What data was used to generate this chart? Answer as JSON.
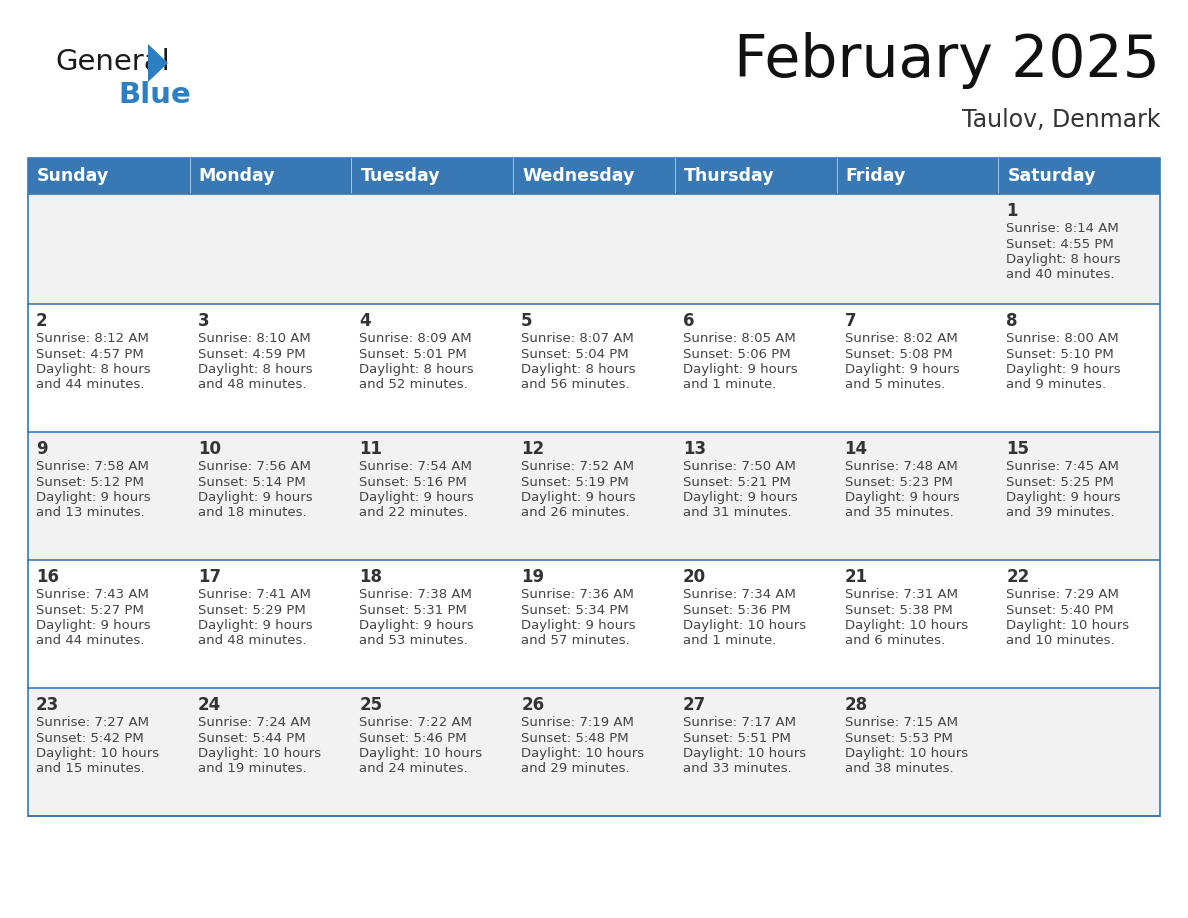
{
  "title": "February 2025",
  "subtitle": "Taulov, Denmark",
  "header_bg_color": "#3878b4",
  "header_text_color": "#ffffff",
  "row_bg_colors": [
    "#f2f2f2",
    "#ffffff",
    "#f2f2f2",
    "#ffffff",
    "#f2f2f2"
  ],
  "border_color": "#3878b4",
  "separator_color": "#3878b4",
  "text_color": "#444444",
  "day_num_color": "#333333",
  "title_color": "#111111",
  "subtitle_color": "#333333",
  "day_names": [
    "Sunday",
    "Monday",
    "Tuesday",
    "Wednesday",
    "Thursday",
    "Friday",
    "Saturday"
  ],
  "calendar_data": [
    [
      null,
      null,
      null,
      null,
      null,
      null,
      {
        "day": 1,
        "sunrise": "8:14 AM",
        "sunset": "4:55 PM",
        "daylight": "8 hours and 40 minutes."
      }
    ],
    [
      {
        "day": 2,
        "sunrise": "8:12 AM",
        "sunset": "4:57 PM",
        "daylight": "8 hours and 44 minutes."
      },
      {
        "day": 3,
        "sunrise": "8:10 AM",
        "sunset": "4:59 PM",
        "daylight": "8 hours and 48 minutes."
      },
      {
        "day": 4,
        "sunrise": "8:09 AM",
        "sunset": "5:01 PM",
        "daylight": "8 hours and 52 minutes."
      },
      {
        "day": 5,
        "sunrise": "8:07 AM",
        "sunset": "5:04 PM",
        "daylight": "8 hours and 56 minutes."
      },
      {
        "day": 6,
        "sunrise": "8:05 AM",
        "sunset": "5:06 PM",
        "daylight": "9 hours and 1 minute."
      },
      {
        "day": 7,
        "sunrise": "8:02 AM",
        "sunset": "5:08 PM",
        "daylight": "9 hours and 5 minutes."
      },
      {
        "day": 8,
        "sunrise": "8:00 AM",
        "sunset": "5:10 PM",
        "daylight": "9 hours and 9 minutes."
      }
    ],
    [
      {
        "day": 9,
        "sunrise": "7:58 AM",
        "sunset": "5:12 PM",
        "daylight": "9 hours and 13 minutes."
      },
      {
        "day": 10,
        "sunrise": "7:56 AM",
        "sunset": "5:14 PM",
        "daylight": "9 hours and 18 minutes."
      },
      {
        "day": 11,
        "sunrise": "7:54 AM",
        "sunset": "5:16 PM",
        "daylight": "9 hours and 22 minutes."
      },
      {
        "day": 12,
        "sunrise": "7:52 AM",
        "sunset": "5:19 PM",
        "daylight": "9 hours and 26 minutes."
      },
      {
        "day": 13,
        "sunrise": "7:50 AM",
        "sunset": "5:21 PM",
        "daylight": "9 hours and 31 minutes."
      },
      {
        "day": 14,
        "sunrise": "7:48 AM",
        "sunset": "5:23 PM",
        "daylight": "9 hours and 35 minutes."
      },
      {
        "day": 15,
        "sunrise": "7:45 AM",
        "sunset": "5:25 PM",
        "daylight": "9 hours and 39 minutes."
      }
    ],
    [
      {
        "day": 16,
        "sunrise": "7:43 AM",
        "sunset": "5:27 PM",
        "daylight": "9 hours and 44 minutes."
      },
      {
        "day": 17,
        "sunrise": "7:41 AM",
        "sunset": "5:29 PM",
        "daylight": "9 hours and 48 minutes."
      },
      {
        "day": 18,
        "sunrise": "7:38 AM",
        "sunset": "5:31 PM",
        "daylight": "9 hours and 53 minutes."
      },
      {
        "day": 19,
        "sunrise": "7:36 AM",
        "sunset": "5:34 PM",
        "daylight": "9 hours and 57 minutes."
      },
      {
        "day": 20,
        "sunrise": "7:34 AM",
        "sunset": "5:36 PM",
        "daylight": "10 hours and 1 minute."
      },
      {
        "day": 21,
        "sunrise": "7:31 AM",
        "sunset": "5:38 PM",
        "daylight": "10 hours and 6 minutes."
      },
      {
        "day": 22,
        "sunrise": "7:29 AM",
        "sunset": "5:40 PM",
        "daylight": "10 hours and 10 minutes."
      }
    ],
    [
      {
        "day": 23,
        "sunrise": "7:27 AM",
        "sunset": "5:42 PM",
        "daylight": "10 hours and 15 minutes."
      },
      {
        "day": 24,
        "sunrise": "7:24 AM",
        "sunset": "5:44 PM",
        "daylight": "10 hours and 19 minutes."
      },
      {
        "day": 25,
        "sunrise": "7:22 AM",
        "sunset": "5:46 PM",
        "daylight": "10 hours and 24 minutes."
      },
      {
        "day": 26,
        "sunrise": "7:19 AM",
        "sunset": "5:48 PM",
        "daylight": "10 hours and 29 minutes."
      },
      {
        "day": 27,
        "sunrise": "7:17 AM",
        "sunset": "5:51 PM",
        "daylight": "10 hours and 33 minutes."
      },
      {
        "day": 28,
        "sunrise": "7:15 AM",
        "sunset": "5:53 PM",
        "daylight": "10 hours and 38 minutes."
      },
      null
    ]
  ],
  "logo_color_general": "#1a1a1a",
  "logo_color_blue": "#2e7fc2",
  "logo_color_triangle": "#2e7fc2"
}
